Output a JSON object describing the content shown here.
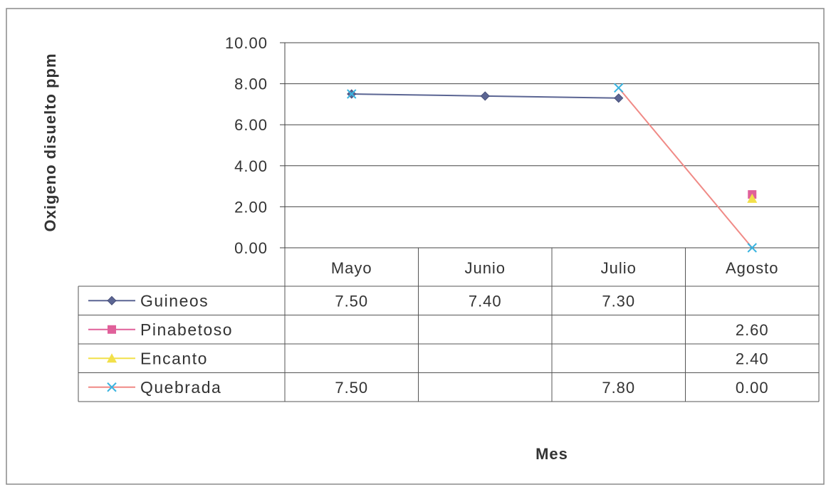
{
  "chart_data": {
    "type": "line",
    "title": "",
    "xlabel": "Mes",
    "ylabel": "Oxigeno disuelto ppm",
    "ylim": [
      0,
      10
    ],
    "yticks": [
      "0.00",
      "2.00",
      "4.00",
      "6.00",
      "8.00",
      "10.00"
    ],
    "grid": true,
    "legend": "data-table",
    "categories": [
      "Mayo",
      "Junio",
      "Julio",
      "Agosto"
    ],
    "series": [
      {
        "name": "Guineos",
        "values": [
          7.5,
          7.4,
          7.3,
          null
        ],
        "labels": [
          "7.50",
          "7.40",
          "7.30",
          ""
        ],
        "color": "#5b6593",
        "marker": "diamond"
      },
      {
        "name": "Pinabetoso",
        "values": [
          null,
          null,
          null,
          2.6
        ],
        "labels": [
          "",
          "",
          "",
          "2.60"
        ],
        "color": "#e0609a",
        "marker": "square"
      },
      {
        "name": "Encanto",
        "values": [
          null,
          null,
          null,
          2.4
        ],
        "labels": [
          "",
          "",
          "",
          "2.40"
        ],
        "color": "#f2e04a",
        "marker": "triangle"
      },
      {
        "name": "Quebrada",
        "values": [
          7.5,
          null,
          7.8,
          0.0
        ],
        "labels": [
          "7.50",
          "",
          "7.80",
          "0.00"
        ],
        "color": "#f08a86",
        "marker": "x",
        "marker_color": "#3ab4e0"
      }
    ]
  }
}
